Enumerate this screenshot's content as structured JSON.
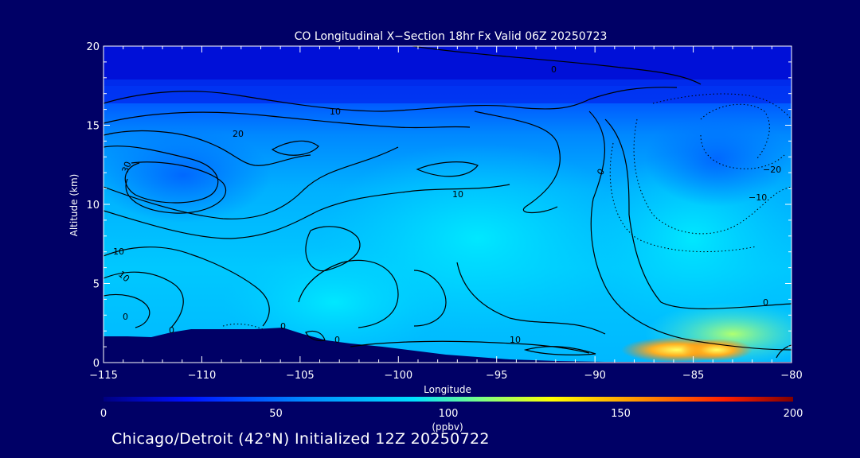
{
  "chart_data": {
    "type": "heatmap",
    "title": "CO Longitudinal X−Section 18hr  Fx Valid 06Z 20250723",
    "xlabel": "Longitude",
    "ylabel": "Altitude (km)",
    "xlim": [
      -115,
      -80
    ],
    "ylim": [
      0,
      20
    ],
    "x_ticks": [
      "−115",
      "−110",
      "−105",
      "−100",
      "−95",
      "−90",
      "−85",
      "−80"
    ],
    "y_ticks": [
      "0",
      "5",
      "10",
      "15",
      "20"
    ],
    "colorbar": {
      "min": 0,
      "max": 200,
      "ticks": [
        "0",
        "50",
        "100",
        "150",
        "200"
      ],
      "label": "(ppbv)"
    },
    "contour_labels": [
      "0",
      "10",
      "10",
      "−20",
      "−10",
      "20",
      "30",
      "10",
      "10",
      "0",
      "0",
      "0",
      "10",
      "0",
      "0",
      "0"
    ],
    "annotation": "Chicago/Detroit (42°N) Initialized 12Z 20250722"
  }
}
